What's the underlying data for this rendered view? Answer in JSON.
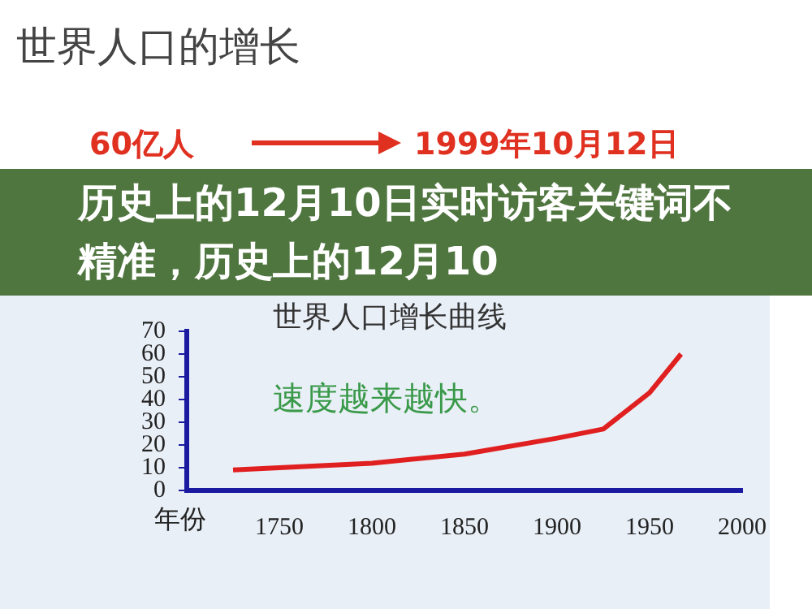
{
  "chart_data": {
    "type": "line",
    "title": "世界人口增长曲线",
    "xlabel": "年份",
    "annotations": [
      "世界人口的增长",
      "60亿人",
      "1999年10月12日",
      "速度越来越快。",
      "历史上的12月10日实时访客关键词不精准，历史上的12月10"
    ],
    "x": [
      1725,
      1750,
      1800,
      1850,
      1900,
      1925,
      1950,
      1967
    ],
    "series": [
      {
        "color": "#e02020",
        "values": [
          9,
          10,
          12,
          16,
          23,
          27,
          43,
          60
        ]
      }
    ],
    "xlim": [
      1700,
      2000
    ],
    "xticks": [
      1750,
      1800,
      1850,
      1900,
      1950,
      2000
    ],
    "ylim": [
      0,
      70
    ],
    "yticks": [
      0,
      10,
      20,
      30,
      40,
      50,
      60,
      70
    ],
    "grid": false,
    "legend": false,
    "marker": "none"
  }
}
